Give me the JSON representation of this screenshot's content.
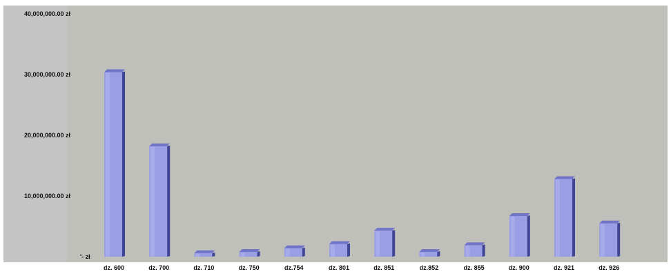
{
  "chart_data": {
    "type": "bar",
    "categories": [
      "dz. 600",
      "dz. 700",
      "dz. 710",
      "dz. 750",
      "dz.754",
      "dz. 801",
      "dz. 851",
      "dz.852",
      "dz. 855",
      "dz. 900",
      "dz. 921",
      "dz. 926"
    ],
    "values": [
      30400000,
      18200000,
      600000,
      800000,
      1400000,
      2100000,
      4300000,
      800000,
      1900000,
      6700000,
      12800000,
      5500000
    ],
    "ylim": [
      0,
      40000000
    ],
    "yticks": [
      {
        "value": 40000000,
        "label": "40,000,000.00 zł"
      },
      {
        "value": 30000000,
        "label": "30,000,000.00 zł"
      },
      {
        "value": 20000000,
        "label": "20,000,000.00 zł"
      },
      {
        "value": 10000000,
        "label": "10,000,000.00 zł"
      },
      {
        "value": 0,
        "label": "'-  zł"
      }
    ],
    "title": "",
    "xlabel": "",
    "ylabel": "",
    "grid": false,
    "legend": "none",
    "colors": {
      "outer_background": "#c4c4c4",
      "plot_background": "#bfc0b9",
      "bar_front": "#9a9ee4",
      "bar_top": "#6f74c8",
      "bar_side": "#3f4496",
      "bar_highlight": "#b4b7ee",
      "label_text": "#111111"
    }
  }
}
